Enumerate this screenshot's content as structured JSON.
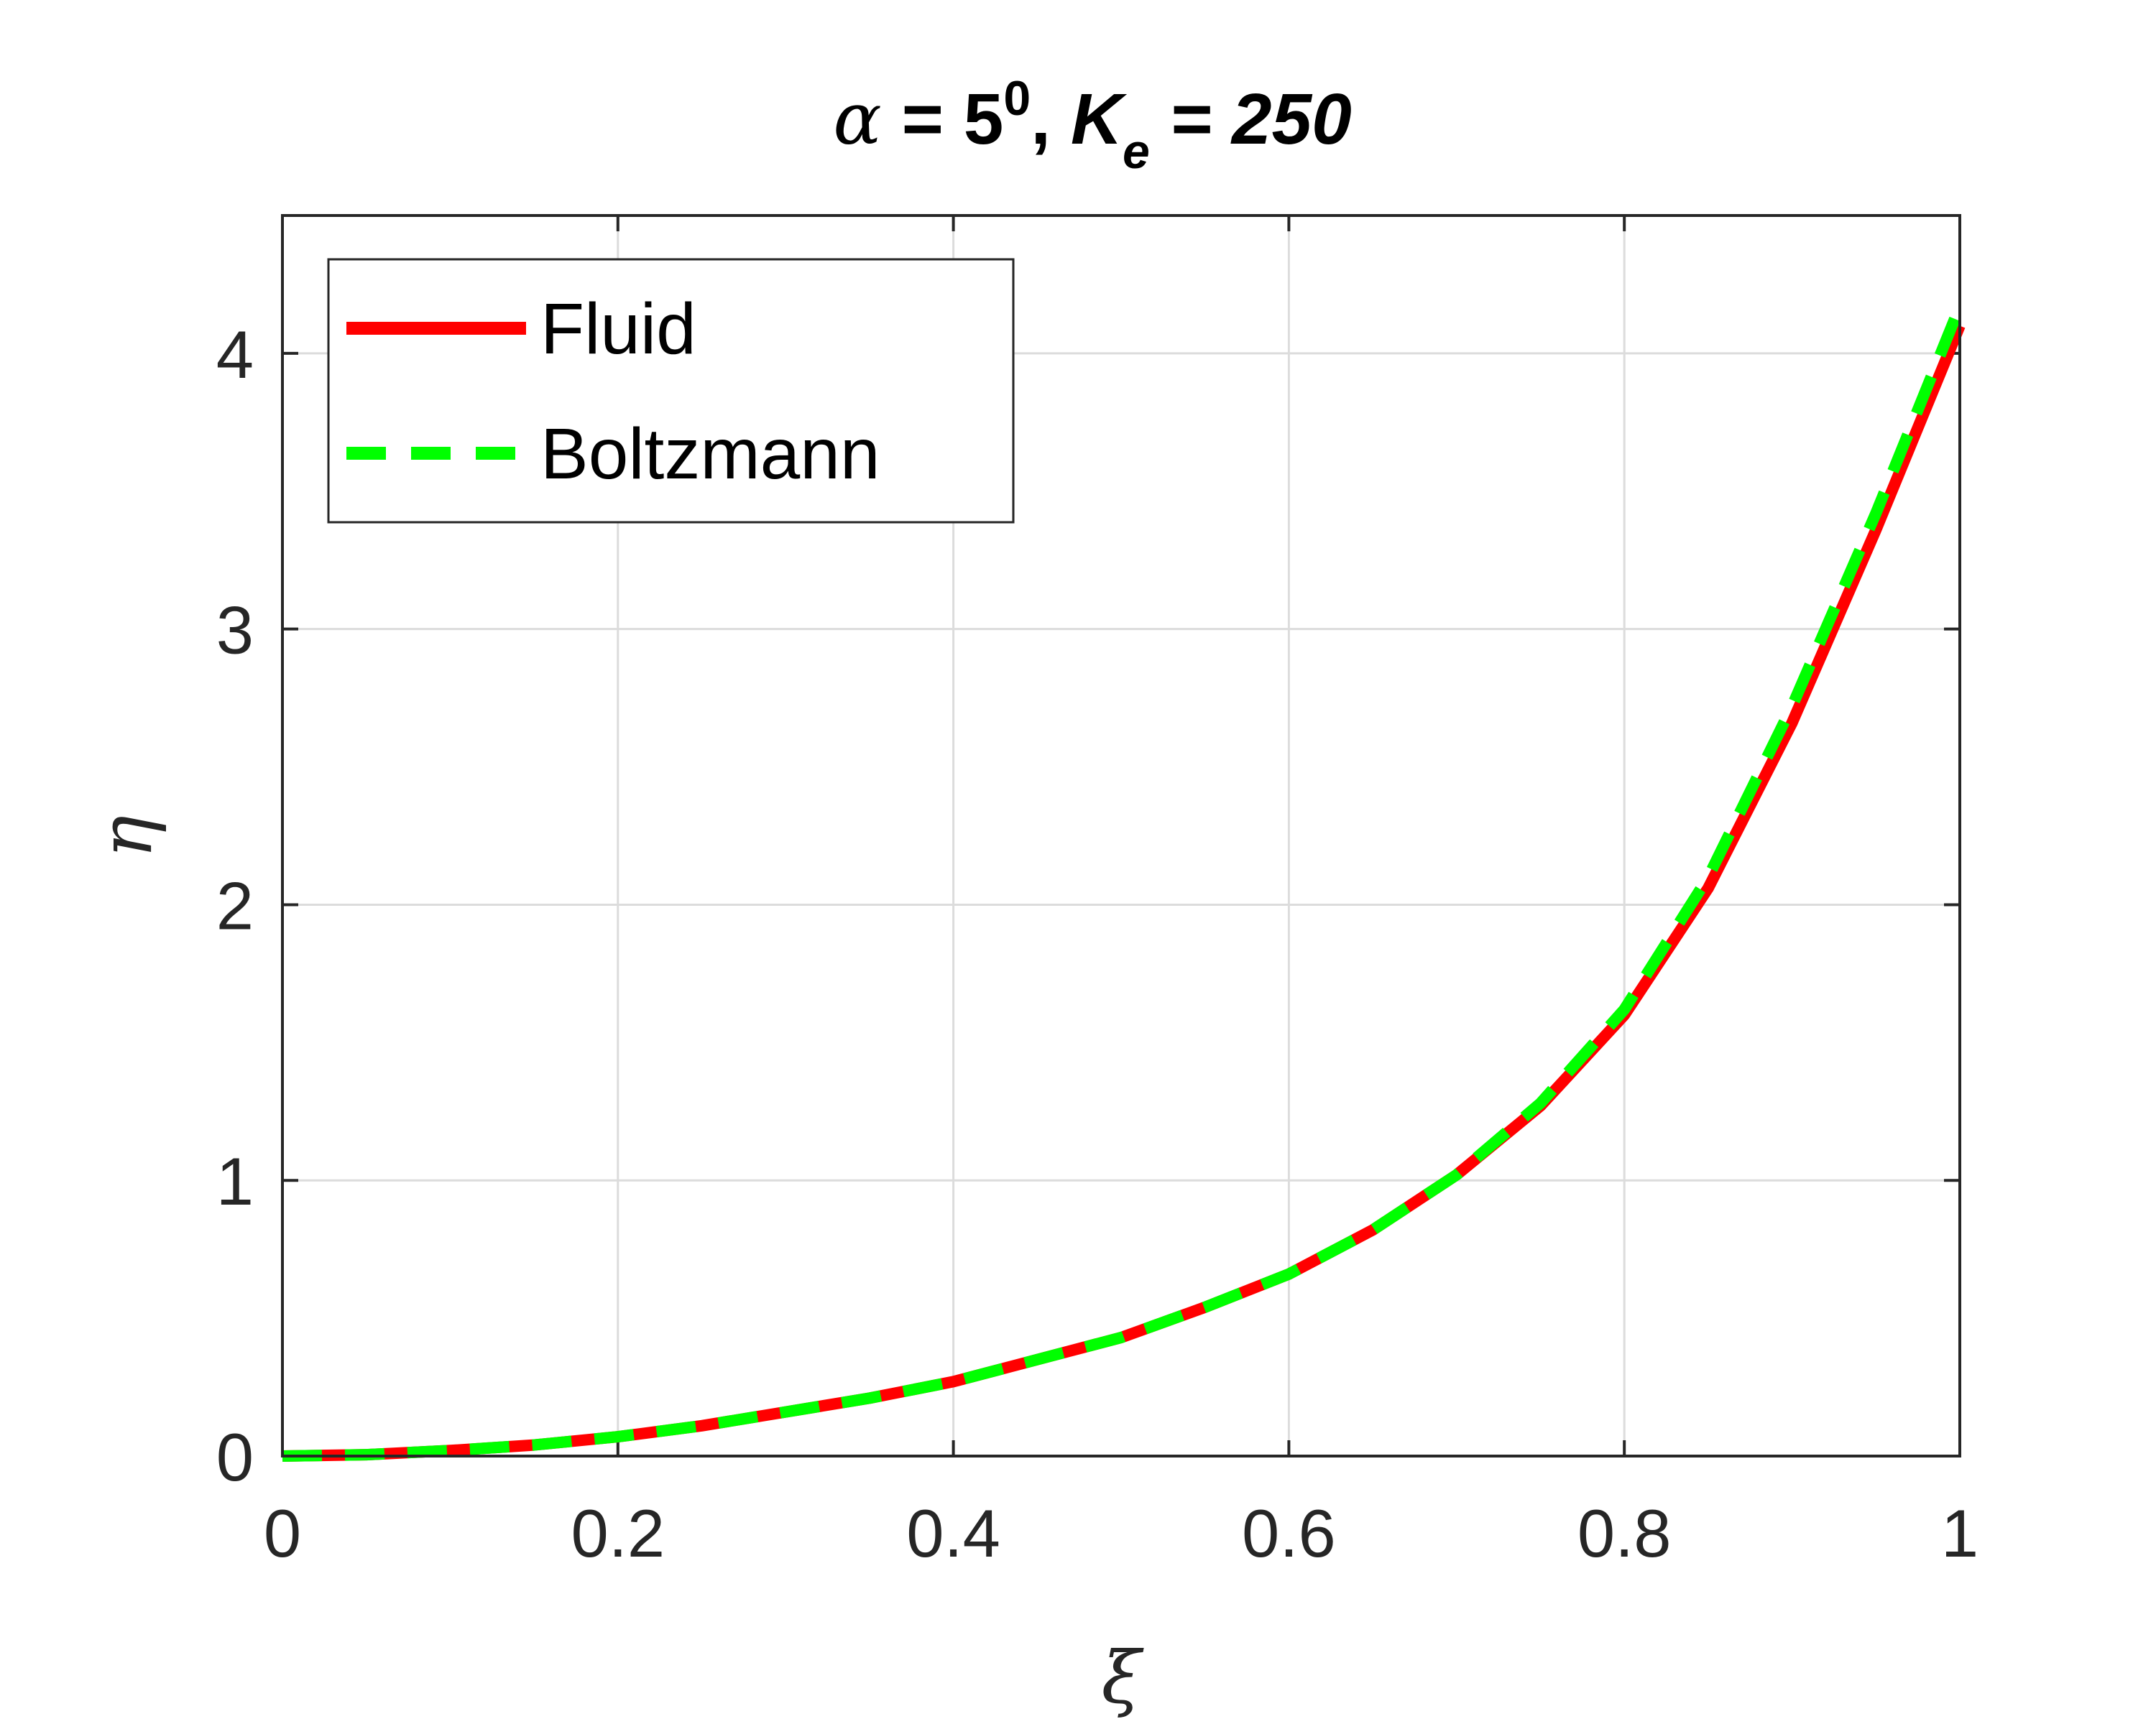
{
  "chart_data": {
    "type": "line",
    "title": {
      "symbol": "α",
      "eq1": " = 5",
      "sup": "0",
      "sep": ",  ",
      "var": "K",
      "sub": "e",
      "eq2": " = 250"
    },
    "xlabel": "ξ",
    "ylabel": "η",
    "xlim": [
      0,
      1
    ],
    "ylim": [
      0,
      4.5
    ],
    "xticks": [
      0,
      0.2,
      0.4,
      0.6,
      0.8,
      1
    ],
    "xtick_labels": [
      "0",
      "0.2",
      "0.4",
      "0.6",
      "0.8",
      "1"
    ],
    "yticks": [
      0,
      1,
      2,
      3,
      4
    ],
    "ytick_labels": [
      "0",
      "1",
      "2",
      "3",
      "4"
    ],
    "grid": true,
    "legend_position": "top-left",
    "series": [
      {
        "name": "Fluid",
        "color": "#ff0000",
        "style": "solid",
        "x": [
          0,
          0.05,
          0.1,
          0.15,
          0.2,
          0.25,
          0.3,
          0.35,
          0.4,
          0.45,
          0.5,
          0.55,
          0.6,
          0.65,
          0.7,
          0.75,
          0.8,
          0.85,
          0.9,
          0.95,
          1.0
        ],
        "y": [
          0,
          0.005,
          0.02,
          0.04,
          0.07,
          0.11,
          0.16,
          0.21,
          0.27,
          0.35,
          0.43,
          0.54,
          0.66,
          0.82,
          1.02,
          1.27,
          1.6,
          2.06,
          2.66,
          3.36,
          4.1
        ]
      },
      {
        "name": "Boltzmann",
        "color": "#00ff00",
        "style": "dashed",
        "x": [
          0,
          0.05,
          0.1,
          0.15,
          0.2,
          0.25,
          0.3,
          0.35,
          0.4,
          0.45,
          0.5,
          0.55,
          0.6,
          0.65,
          0.7,
          0.75,
          0.8,
          0.85,
          0.9,
          0.95,
          1.0
        ],
        "y": [
          0,
          0.005,
          0.02,
          0.04,
          0.07,
          0.11,
          0.16,
          0.21,
          0.27,
          0.35,
          0.43,
          0.54,
          0.66,
          0.82,
          1.02,
          1.28,
          1.62,
          2.1,
          2.72,
          3.42,
          4.17
        ]
      }
    ]
  }
}
